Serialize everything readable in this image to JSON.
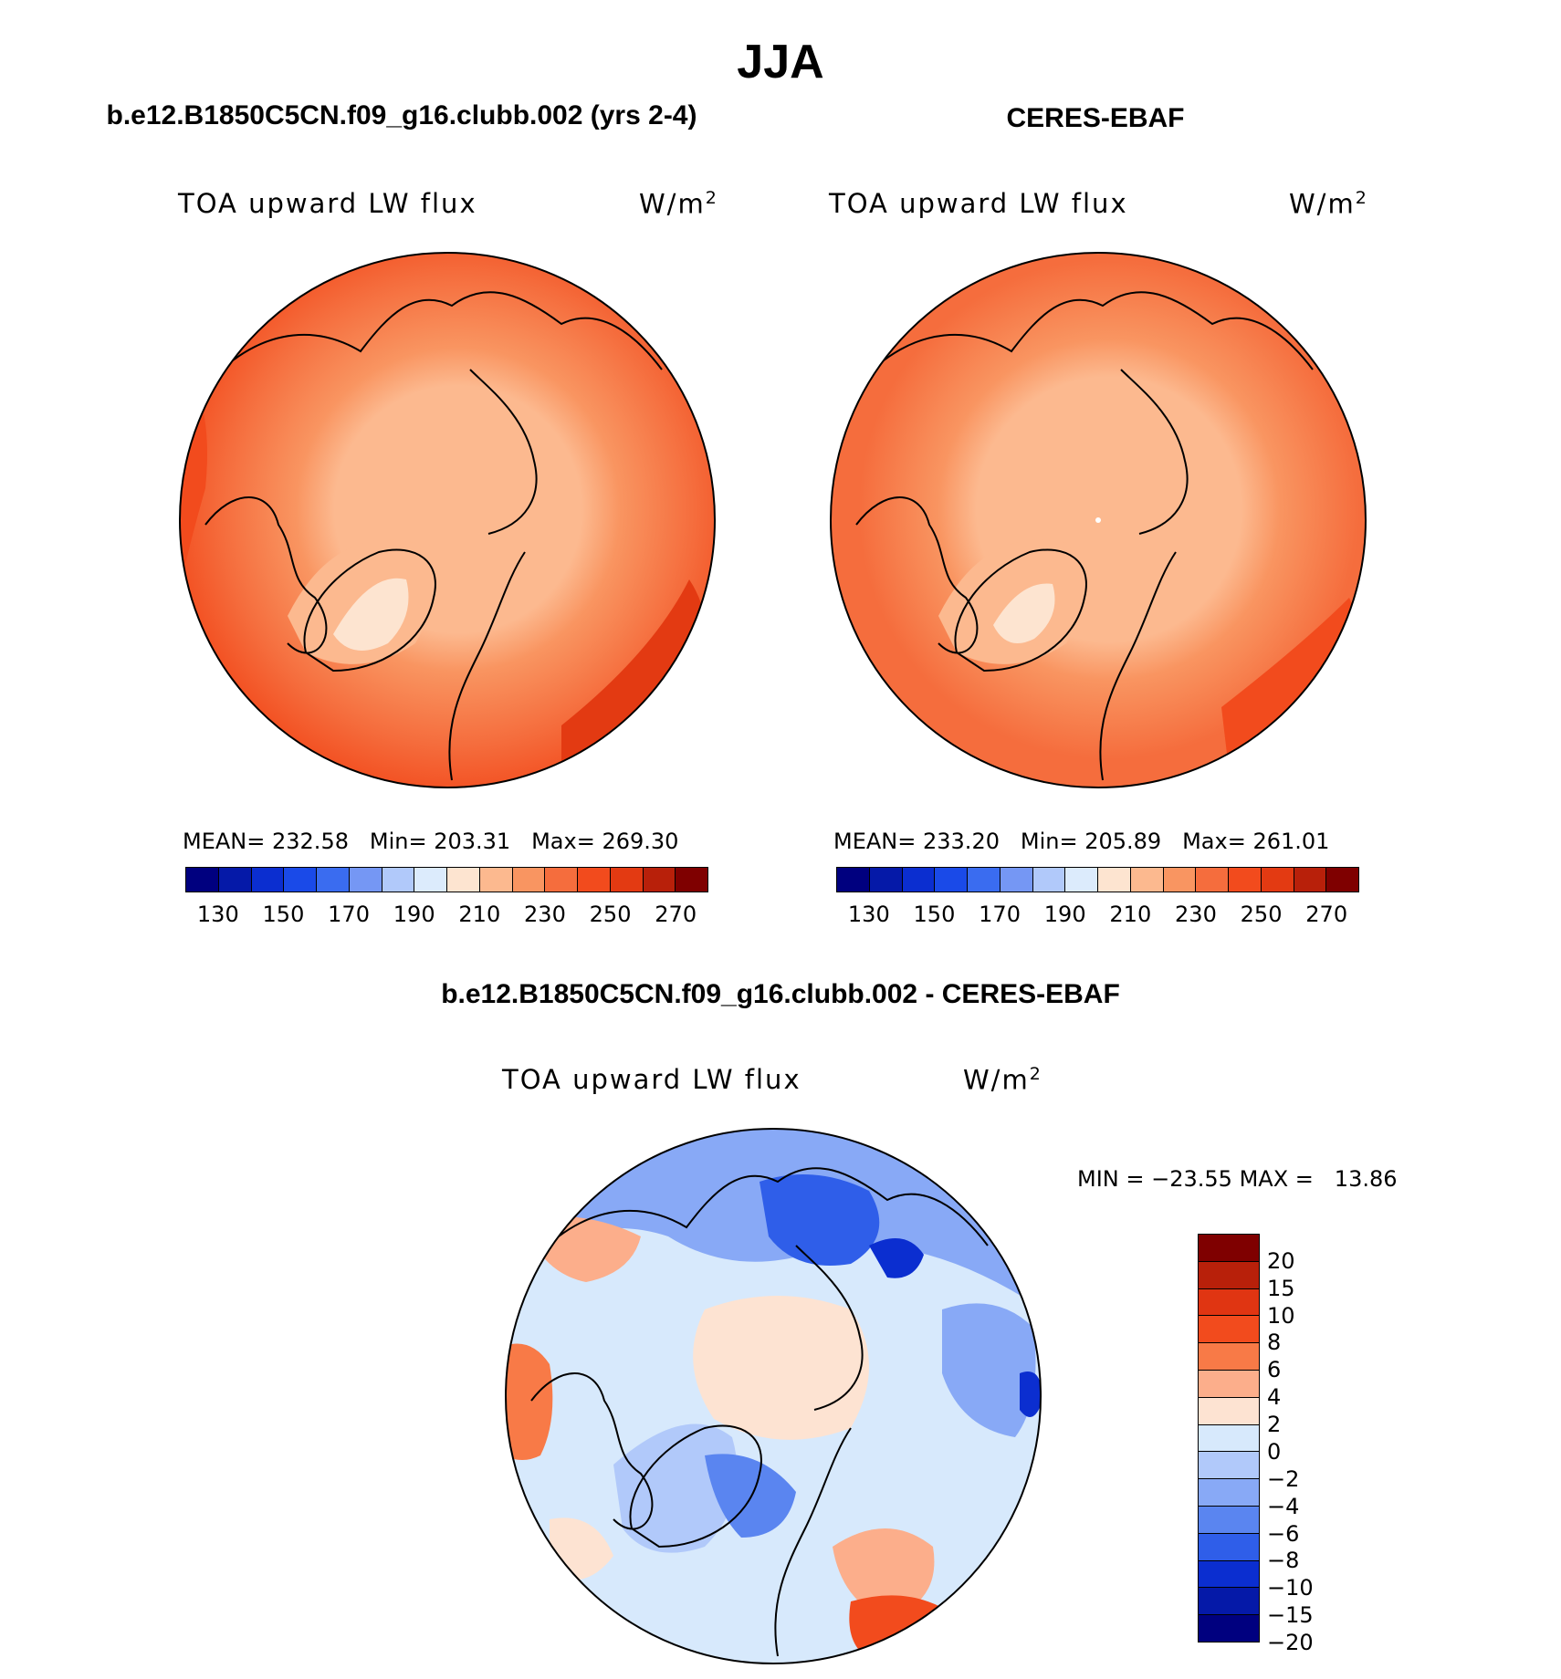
{
  "season": "JJA",
  "panels": {
    "model": {
      "title": "b.e12.B1850C5CN.f09_g16.clubb.002 (yrs 2-4)",
      "variable": "TOA upward LW flux",
      "units_base": "W/m",
      "units_exp": "2",
      "stats": {
        "mean_label": "MEAN=",
        "mean": "232.58",
        "min_label": "Min=",
        "min": "203.31",
        "max_label": "Max=",
        "max": "269.30"
      }
    },
    "obs": {
      "title": "CERES-EBAF",
      "variable": "TOA upward LW flux",
      "units_base": "W/m",
      "units_exp": "2",
      "stats": {
        "mean_label": "MEAN=",
        "mean": "233.20",
        "min_label": "Min=",
        "min": "205.89",
        "max_label": "Max=",
        "max": "261.01"
      }
    },
    "diff": {
      "title": "b.e12.B1850C5CN.f09_g16.clubb.002 - CERES-EBAF",
      "variable": "TOA upward LW flux",
      "units_base": "W/m",
      "units_exp": "2",
      "minmax": {
        "min_label": "MIN =",
        "min": "−23.55",
        "max_label": "MAX =",
        "max": "13.86"
      }
    }
  },
  "colorbars": {
    "abs": {
      "colors": [
        "#00007f",
        "#0519a8",
        "#0b2ed0",
        "#1a4ae8",
        "#3a6cf0",
        "#7597f4",
        "#b1c9fa",
        "#dcebfc",
        "#fde4d0",
        "#fcb98f",
        "#f99561",
        "#f56d3d",
        "#f24b1d",
        "#e33a12",
        "#b8200a",
        "#7f0000"
      ],
      "tick_labels": [
        "130",
        "150",
        "170",
        "190",
        "210",
        "230",
        "250",
        "270"
      ]
    },
    "diff": {
      "colors": [
        "#7f0000",
        "#b8200a",
        "#e03512",
        "#f24b1d",
        "#f87a47",
        "#fcae8b",
        "#fde3d2",
        "#d7e9fc",
        "#b1c9fa",
        "#88a9f6",
        "#5a85f0",
        "#2f5ee9",
        "#0b2ed0",
        "#0519a8",
        "#00007f"
      ],
      "tick_labels": [
        "20",
        "15",
        "10",
        "8",
        "6",
        "4",
        "2",
        "0",
        "−2",
        "−4",
        "−6",
        "−8",
        "−10",
        "−15",
        "−20"
      ]
    }
  },
  "chart_data": [
    {
      "type": "heatmap",
      "projection": "north-polar-stereographic",
      "title": "b.e12.B1850C5CN.f09_g16.clubb.002 (yrs 2-4)",
      "variable": "TOA upward LW flux",
      "units": "W/m2",
      "season": "JJA",
      "mean": 232.58,
      "min": 203.31,
      "max": 269.3,
      "contour_levels": [
        130,
        140,
        150,
        160,
        170,
        180,
        190,
        200,
        210,
        220,
        230,
        240,
        250,
        260,
        270
      ]
    },
    {
      "type": "heatmap",
      "projection": "north-polar-stereographic",
      "title": "CERES-EBAF",
      "variable": "TOA upward LW flux",
      "units": "W/m2",
      "season": "JJA",
      "mean": 233.2,
      "min": 205.89,
      "max": 261.01,
      "contour_levels": [
        130,
        140,
        150,
        160,
        170,
        180,
        190,
        200,
        210,
        220,
        230,
        240,
        250,
        260,
        270
      ]
    },
    {
      "type": "heatmap",
      "projection": "north-polar-stereographic",
      "title": "b.e12.B1850C5CN.f09_g16.clubb.002 - CERES-EBAF",
      "variable": "TOA upward LW flux",
      "units": "W/m2",
      "season": "JJA",
      "min": -23.55,
      "max": 13.86,
      "contour_levels": [
        -20,
        -15,
        -10,
        -8,
        -6,
        -4,
        -2,
        0,
        2,
        4,
        6,
        8,
        10,
        15,
        20
      ]
    }
  ]
}
